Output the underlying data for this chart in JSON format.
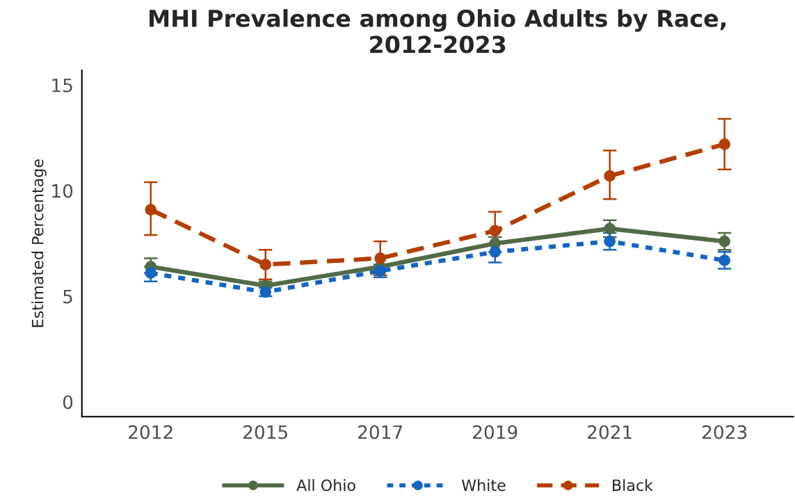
{
  "chart_data": {
    "type": "line",
    "title": "MHI Prevalence among Ohio Adults by Race,\n2012-2023",
    "ylabel": "Estimated Percentage",
    "categories": [
      "2012",
      "2015",
      "2017",
      "2019",
      "2021",
      "2023"
    ],
    "series": [
      {
        "name": "All Ohio",
        "color": "#516b47",
        "line_style": "solid",
        "values": [
          6.4,
          5.5,
          6.4,
          7.5,
          8.2,
          7.6
        ],
        "errors": [
          [
            6.4,
            6.8
          ],
          [
            5.5,
            5.7
          ],
          null,
          [
            7.5,
            7.8
          ],
          [
            7.8,
            8.6
          ],
          [
            7.2,
            8.0
          ]
        ]
      },
      {
        "name": "White",
        "color": "#1565c0",
        "line_style": "dotted",
        "values": [
          6.1,
          5.2,
          6.2,
          7.1,
          7.6,
          6.7
        ],
        "errors": [
          [
            5.7,
            6.1
          ],
          [
            5.0,
            5.4
          ],
          [
            5.9,
            6.5
          ],
          [
            6.6,
            7.1
          ],
          [
            7.2,
            8.0
          ],
          [
            6.3,
            7.1
          ]
        ]
      },
      {
        "name": "Black",
        "color": "#b33f00",
        "line_style": "dashed",
        "values": [
          9.1,
          6.5,
          6.8,
          8.1,
          10.7,
          12.2
        ],
        "errors": [
          [
            7.9,
            10.4
          ],
          [
            5.8,
            7.2
          ],
          [
            6.0,
            7.6
          ],
          [
            8.1,
            9.0
          ],
          [
            9.6,
            11.9
          ],
          [
            11.0,
            13.4
          ]
        ]
      }
    ],
    "ylim": [
      -0.7,
      15.7
    ],
    "yticks": [
      0,
      5,
      10,
      15
    ],
    "grid": false,
    "legend": "bottom",
    "marker": "circle"
  }
}
